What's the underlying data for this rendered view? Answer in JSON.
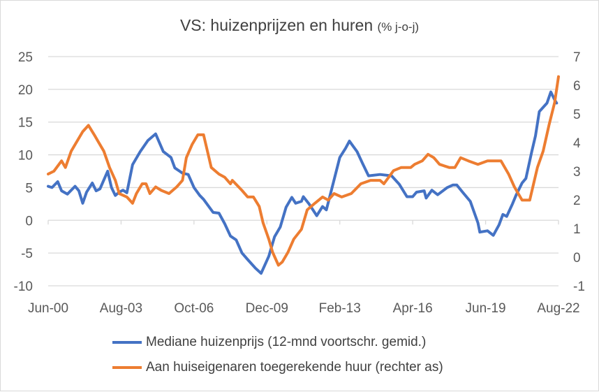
{
  "chart_data": {
    "type": "line",
    "title": "VS: huizenprijzen en huren",
    "subtitle": "(% j-o-j)",
    "x_unit": "months since Jun-00",
    "x_tick_labels": [
      "Jun-00",
      "Aug-03",
      "Oct-06",
      "Dec-09",
      "Feb-13",
      "Apr-16",
      "Jun-19",
      "Aug-22"
    ],
    "x_tick_months": [
      0,
      38,
      76,
      114,
      152,
      190,
      228,
      266
    ],
    "xlim": [
      0,
      266
    ],
    "y_left": {
      "ticks": [
        25,
        20,
        15,
        10,
        5,
        0,
        -5,
        -10
      ],
      "ylim": [
        -10,
        25
      ]
    },
    "y_right": {
      "ticks": [
        7,
        6,
        5,
        4,
        3,
        2,
        1,
        0,
        -1
      ],
      "ylim": [
        -1,
        7
      ]
    },
    "grid": true,
    "legend_position": "bottom",
    "series": [
      {
        "name": "Mediane huizenprijs (12-mnd voortschr. gemid.)",
        "axis": "left",
        "color": "#4472C4",
        "points": [
          [
            0,
            5.2
          ],
          [
            2,
            5.0
          ],
          [
            5,
            5.9
          ],
          [
            7,
            4.5
          ],
          [
            10,
            4.0
          ],
          [
            14,
            5.2
          ],
          [
            16,
            4.5
          ],
          [
            18,
            2.6
          ],
          [
            20,
            4.3
          ],
          [
            23,
            5.7
          ],
          [
            25,
            4.5
          ],
          [
            27,
            4.8
          ],
          [
            31,
            7.5
          ],
          [
            33,
            5
          ],
          [
            35,
            3.8
          ],
          [
            37,
            4.3
          ],
          [
            39,
            4.6
          ],
          [
            41,
            4.2
          ],
          [
            44,
            8.5
          ],
          [
            48,
            10.5
          ],
          [
            52,
            12.2
          ],
          [
            56,
            13.2
          ],
          [
            60,
            10.5
          ],
          [
            64,
            9.6
          ],
          [
            66,
            8
          ],
          [
            70,
            7.2
          ],
          [
            73,
            7
          ],
          [
            76,
            5
          ],
          [
            79,
            3.8
          ],
          [
            81,
            3.2
          ],
          [
            86,
            1.2
          ],
          [
            89,
            1.1
          ],
          [
            92,
            -0.5
          ],
          [
            95,
            -2.4
          ],
          [
            98,
            -3
          ],
          [
            101,
            -5
          ],
          [
            104,
            -6
          ],
          [
            108,
            -7.3
          ],
          [
            111,
            -8.1
          ],
          [
            115,
            -5.5
          ],
          [
            118,
            -2.5
          ],
          [
            121,
            -1.0
          ],
          [
            124,
            2.0
          ],
          [
            127,
            3.5
          ],
          [
            129,
            2.6
          ],
          [
            132,
            2.9
          ],
          [
            133,
            3.6
          ],
          [
            136,
            2.5
          ],
          [
            140,
            0.7
          ],
          [
            143,
            2.1
          ],
          [
            145,
            1.6
          ],
          [
            148,
            5
          ],
          [
            152,
            9.6
          ],
          [
            155,
            11
          ],
          [
            157,
            12.1
          ],
          [
            161,
            10.5
          ],
          [
            164,
            8.6
          ],
          [
            167,
            6.8
          ],
          [
            173,
            7
          ],
          [
            179,
            6.8
          ],
          [
            183,
            5.5
          ],
          [
            187,
            3.6
          ],
          [
            190,
            3.6
          ],
          [
            192,
            4.3
          ],
          [
            196,
            4.5
          ],
          [
            197,
            3.4
          ],
          [
            200,
            4.6
          ],
          [
            203,
            3.9
          ],
          [
            208,
            5
          ],
          [
            211,
            5.4
          ],
          [
            213,
            5.4
          ],
          [
            216,
            4.3
          ],
          [
            220,
            2.9
          ],
          [
            224,
            -0.4
          ],
          [
            225,
            -1.8
          ],
          [
            229,
            -1.6
          ],
          [
            232,
            -2.3
          ],
          [
            235,
            -0.7
          ],
          [
            237,
            0.9
          ],
          [
            239,
            0.6
          ],
          [
            242,
            2.5
          ],
          [
            244,
            3.9
          ],
          [
            247,
            5.7
          ],
          [
            249,
            6.4
          ],
          [
            252,
            10.4
          ],
          [
            254,
            12.9
          ],
          [
            256,
            16.6
          ],
          [
            260,
            17.9
          ],
          [
            262,
            19.6
          ],
          [
            264,
            18.4
          ],
          [
            265,
            17.9
          ]
        ]
      },
      {
        "name": "Aan huiseigenaren toegerekende huur (rechter as)",
        "axis": "right",
        "color": "#ED7D31",
        "points": [
          [
            0,
            2.9
          ],
          [
            3,
            3.0
          ],
          [
            7,
            3.36
          ],
          [
            9,
            3.13
          ],
          [
            12,
            3.7
          ],
          [
            15,
            4.04
          ],
          [
            18,
            4.38
          ],
          [
            21,
            4.6
          ],
          [
            24,
            4.27
          ],
          [
            26,
            4.04
          ],
          [
            29,
            3.7
          ],
          [
            32,
            3.13
          ],
          [
            35,
            2.68
          ],
          [
            37,
            2.22
          ],
          [
            41,
            2.1
          ],
          [
            44,
            1.88
          ],
          [
            46,
            2.22
          ],
          [
            49,
            2.56
          ],
          [
            51,
            2.56
          ],
          [
            53,
            2.22
          ],
          [
            56,
            2.45
          ],
          [
            59,
            2.33
          ],
          [
            63,
            2.22
          ],
          [
            67,
            2.45
          ],
          [
            70,
            2.68
          ],
          [
            72,
            3.47
          ],
          [
            75,
            3.93
          ],
          [
            78,
            4.27
          ],
          [
            81,
            4.27
          ],
          [
            83,
            3.7
          ],
          [
            85,
            3.13
          ],
          [
            89,
            2.9
          ],
          [
            92,
            2.79
          ],
          [
            95,
            2.56
          ],
          [
            96,
            2.68
          ],
          [
            101,
            2.33
          ],
          [
            104,
            2.1
          ],
          [
            107,
            2.1
          ],
          [
            110,
            1.77
          ],
          [
            112,
            1.2
          ],
          [
            115,
            0.63
          ],
          [
            117,
            0.17
          ],
          [
            120,
            -0.28
          ],
          [
            122,
            -0.17
          ],
          [
            125,
            0.17
          ],
          [
            128,
            0.63
          ],
          [
            132,
            0.97
          ],
          [
            135,
            1.65
          ],
          [
            139,
            1.88
          ],
          [
            143,
            2.1
          ],
          [
            146,
            1.99
          ],
          [
            149,
            2.22
          ],
          [
            153,
            2.1
          ],
          [
            158,
            2.22
          ],
          [
            163,
            2.56
          ],
          [
            168,
            2.68
          ],
          [
            173,
            2.68
          ],
          [
            175,
            2.56
          ],
          [
            180,
            3.02
          ],
          [
            184,
            3.13
          ],
          [
            189,
            3.13
          ],
          [
            191,
            3.24
          ],
          [
            195,
            3.36
          ],
          [
            198,
            3.59
          ],
          [
            201,
            3.47
          ],
          [
            204,
            3.24
          ],
          [
            209,
            3.13
          ],
          [
            212,
            3.13
          ],
          [
            215,
            3.47
          ],
          [
            219,
            3.36
          ],
          [
            224,
            3.24
          ],
          [
            229,
            3.36
          ],
          [
            232,
            3.36
          ],
          [
            236,
            3.36
          ],
          [
            240,
            2.9
          ],
          [
            243,
            2.45
          ],
          [
            247,
            1.99
          ],
          [
            251,
            1.99
          ],
          [
            253,
            2.56
          ],
          [
            255,
            3.13
          ],
          [
            258,
            3.7
          ],
          [
            261,
            4.6
          ],
          [
            264,
            5.4
          ],
          [
            266,
            6.3
          ]
        ]
      }
    ]
  }
}
